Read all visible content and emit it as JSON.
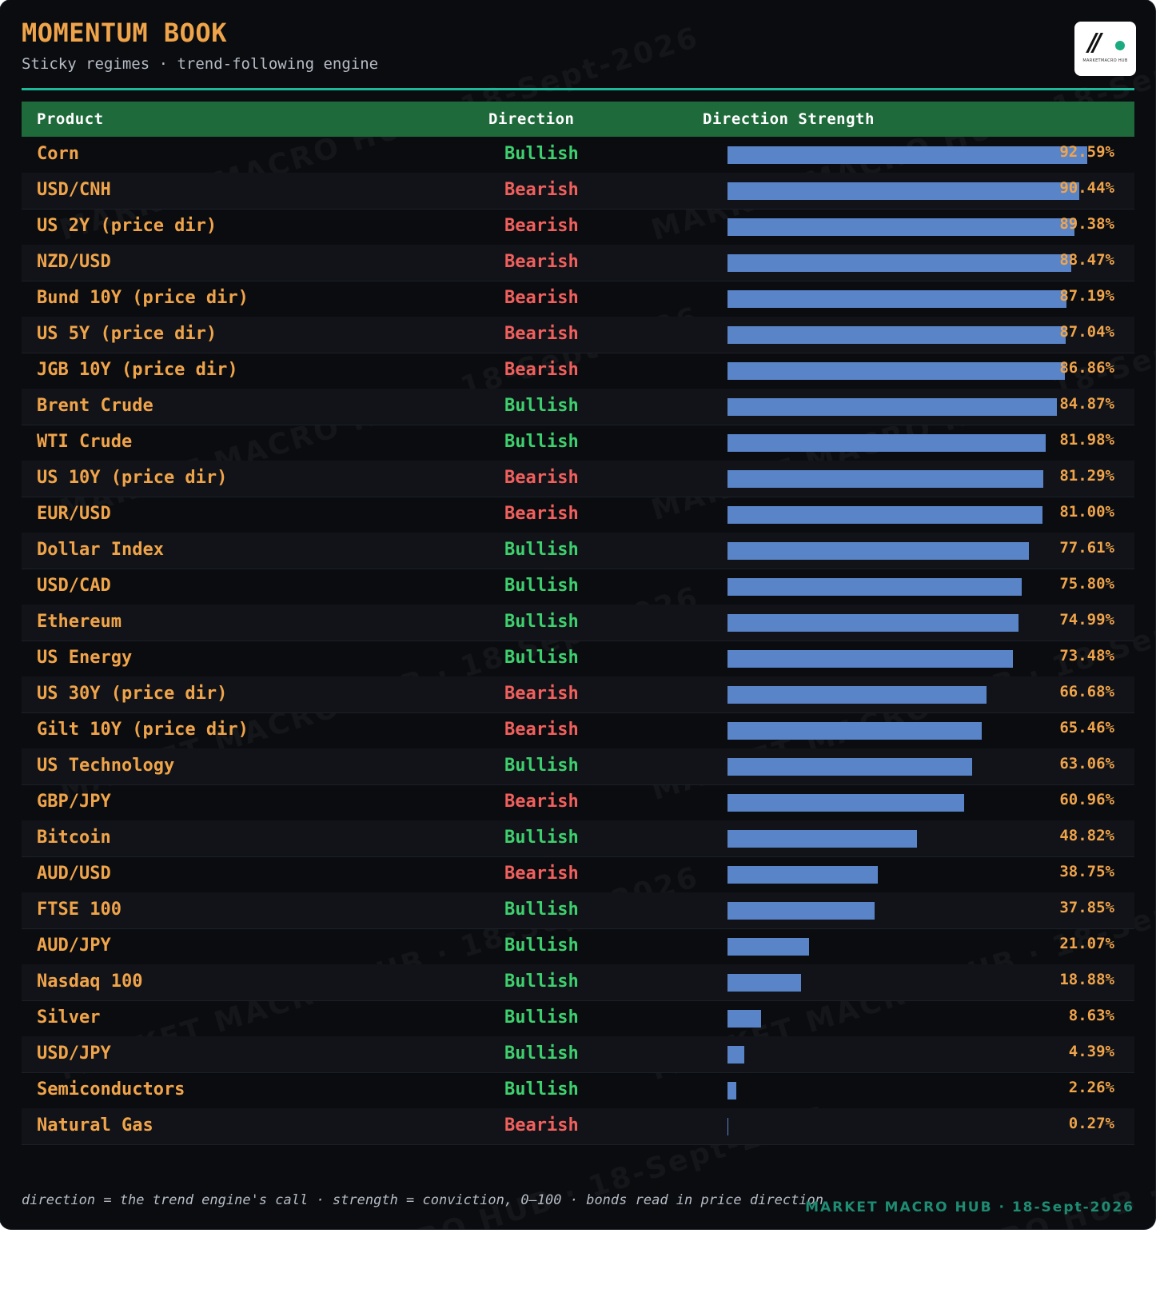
{
  "header": {
    "title": "MOMENTUM BOOK",
    "subtitle": "Sticky regimes · trend-following engine",
    "logo_text": "MARKETMACRO HUB"
  },
  "watermark": "MARKET MACRO HUB · 18-Sept-2026",
  "table": {
    "columns": [
      "Product",
      "Direction",
      "Direction Strength"
    ],
    "rows": [
      {
        "product": "Corn",
        "direction": "Bullish",
        "strength": 92.59,
        "strength_label": "92.59%"
      },
      {
        "product": "USD/CNH",
        "direction": "Bearish",
        "strength": 90.44,
        "strength_label": "90.44%"
      },
      {
        "product": "US 2Y (price dir)",
        "direction": "Bearish",
        "strength": 89.38,
        "strength_label": "89.38%"
      },
      {
        "product": "NZD/USD",
        "direction": "Bearish",
        "strength": 88.47,
        "strength_label": "88.47%"
      },
      {
        "product": "Bund 10Y (price dir)",
        "direction": "Bearish",
        "strength": 87.19,
        "strength_label": "87.19%"
      },
      {
        "product": "US 5Y (price dir)",
        "direction": "Bearish",
        "strength": 87.04,
        "strength_label": "87.04%"
      },
      {
        "product": "JGB 10Y (price dir)",
        "direction": "Bearish",
        "strength": 86.86,
        "strength_label": "86.86%"
      },
      {
        "product": "Brent Crude",
        "direction": "Bullish",
        "strength": 84.87,
        "strength_label": "84.87%"
      },
      {
        "product": "WTI Crude",
        "direction": "Bullish",
        "strength": 81.98,
        "strength_label": "81.98%"
      },
      {
        "product": "US 10Y (price dir)",
        "direction": "Bearish",
        "strength": 81.29,
        "strength_label": "81.29%"
      },
      {
        "product": "EUR/USD",
        "direction": "Bearish",
        "strength": 81.0,
        "strength_label": "81.00%"
      },
      {
        "product": "Dollar Index",
        "direction": "Bullish",
        "strength": 77.61,
        "strength_label": "77.61%"
      },
      {
        "product": "USD/CAD",
        "direction": "Bullish",
        "strength": 75.8,
        "strength_label": "75.80%"
      },
      {
        "product": "Ethereum",
        "direction": "Bullish",
        "strength": 74.99,
        "strength_label": "74.99%"
      },
      {
        "product": "US Energy",
        "direction": "Bullish",
        "strength": 73.48,
        "strength_label": "73.48%"
      },
      {
        "product": "US 30Y (price dir)",
        "direction": "Bearish",
        "strength": 66.68,
        "strength_label": "66.68%"
      },
      {
        "product": "Gilt 10Y (price dir)",
        "direction": "Bearish",
        "strength": 65.46,
        "strength_label": "65.46%"
      },
      {
        "product": "US Technology",
        "direction": "Bullish",
        "strength": 63.06,
        "strength_label": "63.06%"
      },
      {
        "product": "GBP/JPY",
        "direction": "Bearish",
        "strength": 60.96,
        "strength_label": "60.96%"
      },
      {
        "product": "Bitcoin",
        "direction": "Bullish",
        "strength": 48.82,
        "strength_label": "48.82%"
      },
      {
        "product": "AUD/USD",
        "direction": "Bearish",
        "strength": 38.75,
        "strength_label": "38.75%"
      },
      {
        "product": "FTSE 100",
        "direction": "Bullish",
        "strength": 37.85,
        "strength_label": "37.85%"
      },
      {
        "product": "AUD/JPY",
        "direction": "Bullish",
        "strength": 21.07,
        "strength_label": "21.07%"
      },
      {
        "product": "Nasdaq 100",
        "direction": "Bullish",
        "strength": 18.88,
        "strength_label": "18.88%"
      },
      {
        "product": "Silver",
        "direction": "Bullish",
        "strength": 8.63,
        "strength_label": "8.63%"
      },
      {
        "product": "USD/JPY",
        "direction": "Bullish",
        "strength": 4.39,
        "strength_label": "4.39%"
      },
      {
        "product": "Semiconductors",
        "direction": "Bullish",
        "strength": 2.26,
        "strength_label": "2.26%"
      },
      {
        "product": "Natural Gas",
        "direction": "Bearish",
        "strength": 0.27,
        "strength_label": "0.27%"
      }
    ]
  },
  "footer": {
    "note": "direction = the trend engine's call · strength = conviction, 0–100 · bonds read in price direction",
    "brand": "MARKET MACRO HUB · 18-Sept-2026"
  },
  "colors": {
    "accent": "#f0a44a",
    "bullish": "#3ecf6e",
    "bearish": "#f0605d",
    "bar": "#5a84c8",
    "header_bg": "#1f6a3b",
    "rule": "#1dba9a",
    "brand": "#1e8c73"
  },
  "icons": {
    "logo": "market-macro-hub-logo"
  }
}
